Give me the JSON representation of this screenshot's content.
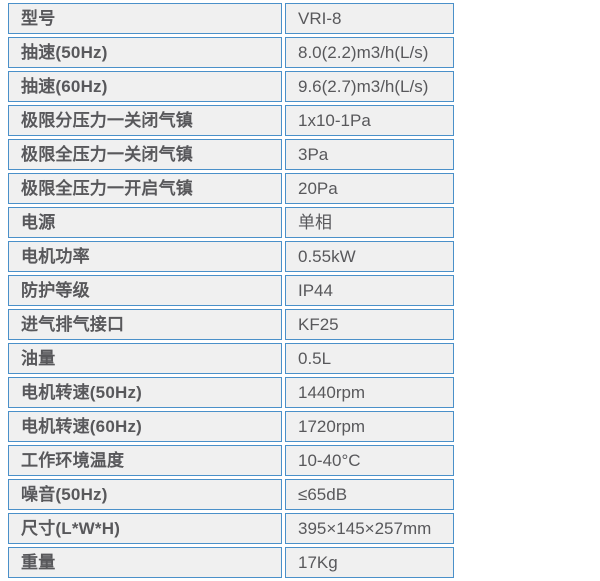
{
  "table": {
    "title": "product-specifications",
    "border_color": "#4a90c9",
    "cell_background": "#f0f0f0",
    "text_color": "#58585b",
    "rows": [
      {
        "label": "型号",
        "value": "VRI-8"
      },
      {
        "label": "抽速(50Hz)",
        "value": "8.0(2.2)m3/h(L/s)"
      },
      {
        "label": "抽速(60Hz)",
        "value": "9.6(2.7)m3/h(L/s)"
      },
      {
        "label": "极限分压力一关闭气镇",
        "value": "1x10-1Pa"
      },
      {
        "label": "极限全压力一关闭气镇",
        "value": "3Pa"
      },
      {
        "label": "极限全压力一开启气镇",
        "value": "20Pa"
      },
      {
        "label": "电源",
        "value": "单相"
      },
      {
        "label": "电机功率",
        "value": "0.55kW"
      },
      {
        "label": "防护等级",
        "value": "IP44"
      },
      {
        "label": "进气排气接口",
        "value": "KF25"
      },
      {
        "label": "油量",
        "value": "0.5L"
      },
      {
        "label": "电机转速(50Hz)",
        "value": "1440rpm"
      },
      {
        "label": "电机转速(60Hz)",
        "value": "1720rpm"
      },
      {
        "label": "工作环境温度",
        "value": "10-40°C"
      },
      {
        "label": "噪音(50Hz)",
        "value": "≤65dB"
      },
      {
        "label": "尺寸(L*W*H)",
        "value": "395×145×257mm"
      },
      {
        "label": "重量",
        "value": "17Kg"
      }
    ]
  }
}
